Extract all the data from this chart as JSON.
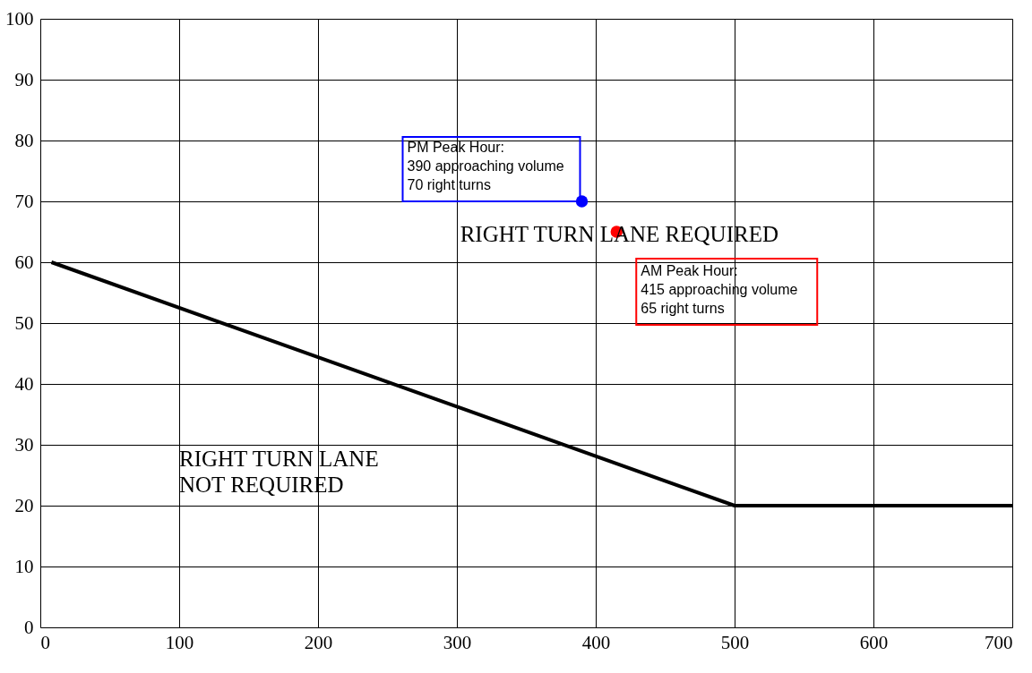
{
  "chart_data": {
    "type": "line",
    "xlim": [
      0,
      700
    ],
    "xticks": [
      0,
      100,
      200,
      300,
      400,
      500,
      600,
      700
    ],
    "ylim": [
      0,
      100
    ],
    "yticks": [
      0,
      10,
      20,
      30,
      40,
      50,
      60,
      70,
      80,
      90,
      100
    ],
    "grid": true,
    "series": [
      {
        "color": "#000000",
        "line_style": "solid",
        "x": [
          8,
          500,
          700
        ],
        "values": [
          60,
          20,
          20
        ]
      },
      {
        "type": "scatter",
        "color": "#0000ff",
        "x": [
          390
        ],
        "values": [
          70
        ],
        "marker": "circle"
      },
      {
        "type": "scatter",
        "color": "#ff0000",
        "x": [
          415
        ],
        "values": [
          65
        ],
        "marker": "circle"
      }
    ],
    "annotations": [
      {
        "text": "PM Peak Hour:\n390 approaching volume\n70 right turns",
        "x": 390,
        "y": 70
      },
      {
        "text": "AM Peak Hour:\n415 approaching volume\n65 right turns",
        "x": 415,
        "y": 65
      },
      "RIGHT TURN LANE REQUIRED",
      "RIGHT TURN LANE\nNOT REQUIRED"
    ]
  }
}
